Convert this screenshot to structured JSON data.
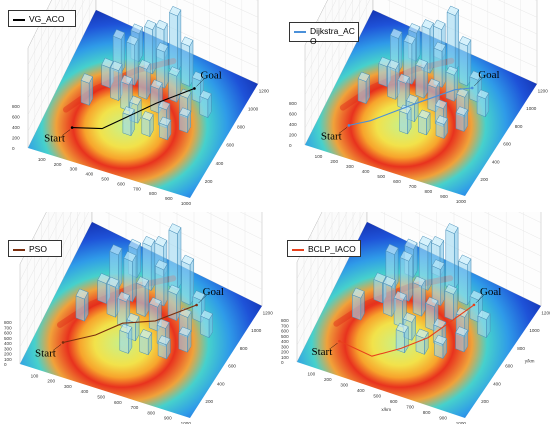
{
  "panels": [
    {
      "legend": "VG_ACO",
      "line_color": "#000000",
      "start_label": "Start",
      "goal_label": "Goal",
      "x_ticks": [
        "100",
        "200",
        "300",
        "400",
        "500",
        "600",
        "700",
        "800",
        "900",
        "1000"
      ],
      "y_ticks": [
        "200",
        "400",
        "600",
        "800",
        "1000",
        "1200"
      ],
      "z_ticks": [
        "0",
        "200",
        "400",
        "600",
        "800"
      ],
      "axis_labels": {
        "x": "",
        "y": ""
      }
    },
    {
      "legend": "Dijkstra_AC\nO",
      "line_color": "#4a90d9",
      "start_label": "Start",
      "goal_label": "Goal",
      "x_ticks": [
        "100",
        "200",
        "300",
        "400",
        "500",
        "600",
        "700",
        "800",
        "900",
        "1000"
      ],
      "y_ticks": [
        "200",
        "400",
        "600",
        "800",
        "1000",
        "1200"
      ],
      "z_ticks": [
        "0",
        "200",
        "400",
        "600",
        "800"
      ],
      "axis_labels": {
        "x": "",
        "y": ""
      }
    },
    {
      "legend": "PSO",
      "line_color": "#7a2e0e",
      "start_label": "Start",
      "goal_label": "Goal",
      "x_ticks": [
        "100",
        "200",
        "300",
        "400",
        "500",
        "600",
        "700",
        "800",
        "900",
        "1000"
      ],
      "y_ticks": [
        "200",
        "400",
        "600",
        "800",
        "1000",
        "1200"
      ],
      "z_ticks": [
        "0",
        "100",
        "200",
        "300",
        "400",
        "500",
        "600",
        "700",
        "800"
      ],
      "axis_labels": {
        "x": "",
        "y": ""
      }
    },
    {
      "legend": "BCLP_IACO",
      "line_color": "#e8401c",
      "start_label": "Start",
      "goal_label": "Goal",
      "x_ticks": [
        "100",
        "200",
        "300",
        "400",
        "500",
        "600",
        "700",
        "800",
        "900",
        "1000"
      ],
      "y_ticks": [
        "200",
        "400",
        "600",
        "800",
        "1000",
        "1200"
      ],
      "z_ticks": [
        "0",
        "100",
        "200",
        "300",
        "400",
        "500",
        "600",
        "700",
        "800"
      ],
      "axis_labels": {
        "x": "x/km",
        "y": "y/km"
      }
    }
  ]
}
